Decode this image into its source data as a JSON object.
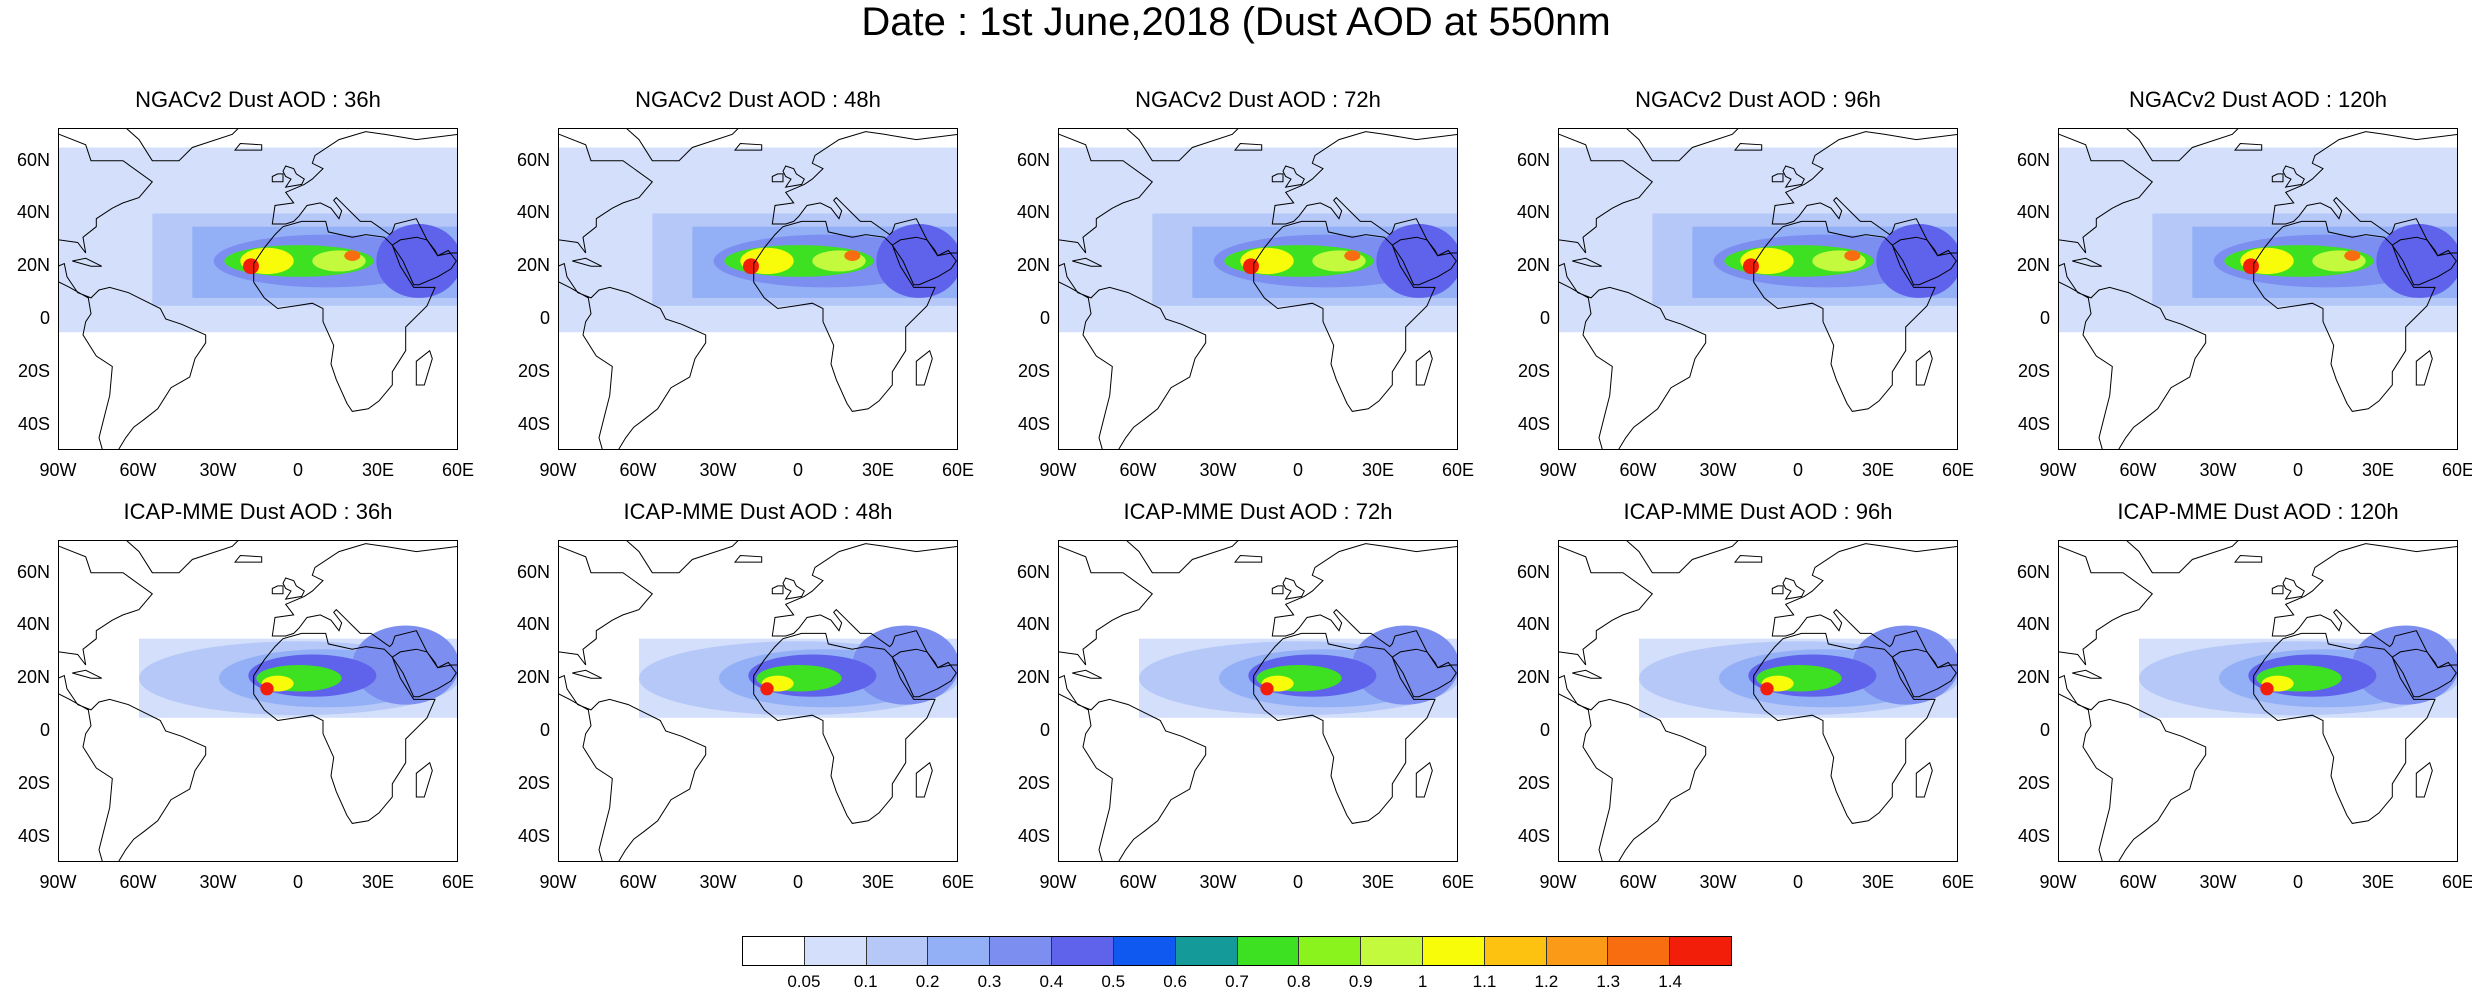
{
  "title": "Date : 1st June,2018 (Dust AOD at 550nm",
  "panels": [
    {
      "title": "NGACv2 Dust AOD : 36h",
      "model": "NGACv2",
      "lead": "36h"
    },
    {
      "title": "NGACv2 Dust AOD : 48h",
      "model": "NGACv2",
      "lead": "48h"
    },
    {
      "title": "NGACv2 Dust AOD : 72h",
      "model": "NGACv2",
      "lead": "72h"
    },
    {
      "title": "NGACv2 Dust AOD : 96h",
      "model": "NGACv2",
      "lead": "96h"
    },
    {
      "title": "NGACv2 Dust AOD : 120h",
      "model": "NGACv2",
      "lead": "120h"
    },
    {
      "title": "ICAP-MME Dust AOD : 36h",
      "model": "ICAP-MME",
      "lead": "36h"
    },
    {
      "title": "ICAP-MME Dust AOD : 48h",
      "model": "ICAP-MME",
      "lead": "48h"
    },
    {
      "title": "ICAP-MME Dust AOD : 72h",
      "model": "ICAP-MME",
      "lead": "72h"
    },
    {
      "title": "ICAP-MME Dust AOD : 96h",
      "model": "ICAP-MME",
      "lead": "96h"
    },
    {
      "title": "ICAP-MME Dust AOD : 120h",
      "model": "ICAP-MME",
      "lead": "120h"
    }
  ],
  "map": {
    "lat_labels": [
      "60N",
      "40N",
      "20N",
      "0",
      "20S",
      "40S"
    ],
    "lon_labels": [
      "90W",
      "60W",
      "30W",
      "0",
      "30E",
      "60E"
    ],
    "lat_range": [
      -50,
      72
    ],
    "lon_range": [
      -90,
      60
    ]
  },
  "colorbar": {
    "levels": [
      "0.05",
      "0.1",
      "0.2",
      "0.3",
      "0.4",
      "0.5",
      "0.6",
      "0.7",
      "0.8",
      "0.9",
      "1",
      "1.1",
      "1.2",
      "1.3",
      "1.4"
    ],
    "colors": [
      "#ffffff",
      "#d4e0fb",
      "#b6c8f8",
      "#93b0f7",
      "#7c8ef0",
      "#5f63ec",
      "#0f59f0",
      "#139a99",
      "#3ee022",
      "#8af21c",
      "#c3fa3e",
      "#f8fc09",
      "#fcc20f",
      "#fb9a16",
      "#f86d0f",
      "#f31e09"
    ]
  }
}
